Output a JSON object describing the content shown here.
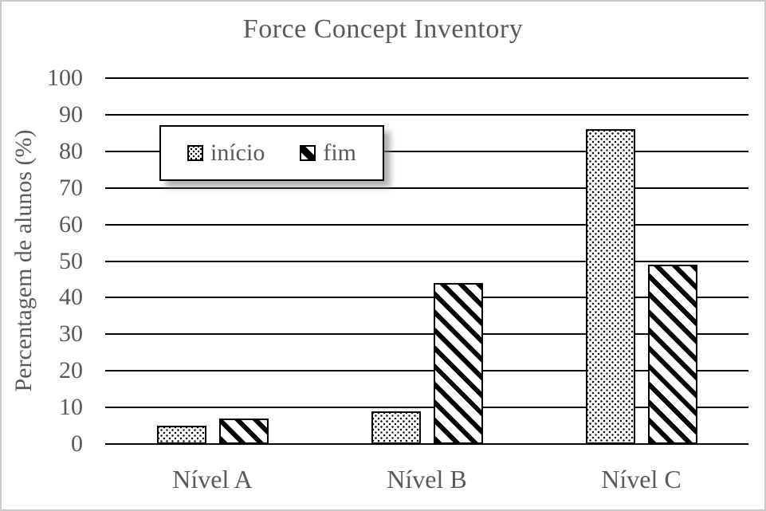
{
  "chart_data": {
    "type": "bar",
    "title": "Force Concept Inventory",
    "ylabel": "Percentagem de alunos (%)",
    "xlabel": "",
    "categories": [
      "Nível A",
      "Nível B",
      "Nível C"
    ],
    "series": [
      {
        "name": "início",
        "pattern": "dots",
        "values": [
          5,
          9,
          86
        ]
      },
      {
        "name": "fim",
        "pattern": "diagonal-stripes",
        "values": [
          7,
          44,
          49
        ]
      }
    ],
    "ylim": [
      0,
      100
    ],
    "ytick_step": 10,
    "yticks": [
      0,
      10,
      20,
      30,
      40,
      50,
      60,
      70,
      80,
      90,
      100
    ],
    "grid": "horizontal",
    "legend_position": "inside-top-left",
    "colors": {
      "text": "#595959",
      "line": "#000000",
      "bar_fill": "#ffffff",
      "pattern_ink": "#000000",
      "frame_border": "#c9c9c9"
    }
  }
}
